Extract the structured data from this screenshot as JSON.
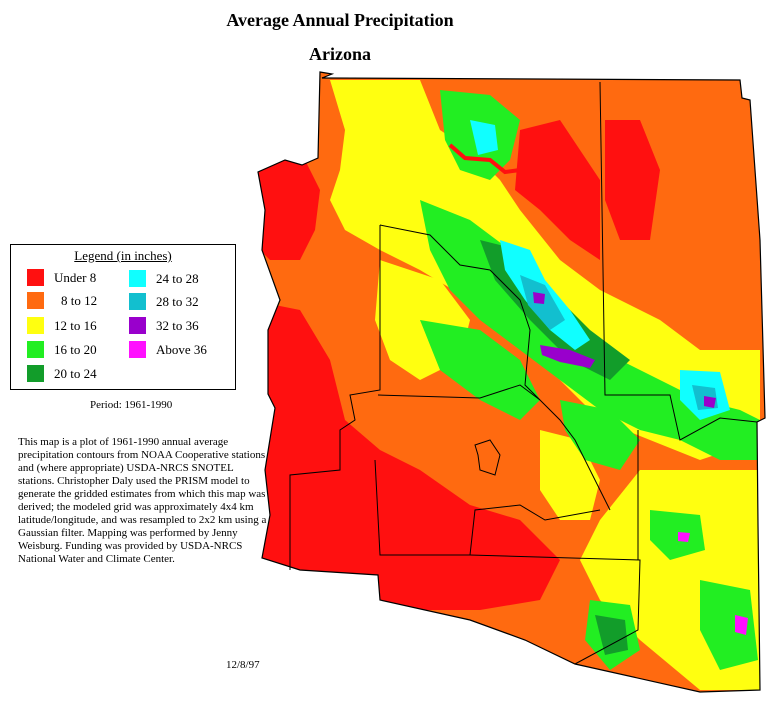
{
  "header": {
    "title": "Average Annual Precipitation",
    "subtitle": "Arizona"
  },
  "legend": {
    "title": "Legend (in inches)",
    "items": [
      {
        "label": "Under 8",
        "color": "#ff1010"
      },
      {
        "label": "8 to 12",
        "color": "#ff6a10"
      },
      {
        "label": "12 to 16",
        "color": "#ffff10"
      },
      {
        "label": "16 to 20",
        "color": "#22ee22"
      },
      {
        "label": "20 to 24",
        "color": "#129d2a"
      },
      {
        "label": "24 to 28",
        "color": "#10ffff"
      },
      {
        "label": "28 to 32",
        "color": "#12bfcf"
      },
      {
        "label": "32 to 36",
        "color": "#9900cc"
      },
      {
        "label": "Above 36",
        "color": "#ff10ff"
      }
    ]
  },
  "period": "Period: 1961-1990",
  "description": "This map is a plot of 1961-1990 annual average precipitation contours from NOAA Cooperative stations and (where appropriate) USDA-NRCS SNOTEL stations. Christopher Daly used the PRISM model to generate the gridded estimates from which this map was derived; the modeled grid was approximately 4x4 km latitude/longitude, and was resampled to 2x2 km using a Gaussian filter. Mapping was performed by Jenny Weisburg. Funding was provided by USDA-NRCS National Water and Climate Center.",
  "date": "12/8/97",
  "map": {
    "colors": {
      "under8": "#ff1010",
      "r8to12": "#ff6a10",
      "r12to16": "#ffff10",
      "r16to20": "#22ee22",
      "r20to24": "#129d2a",
      "r24to28": "#10ffff",
      "r28to32": "#12bfcf",
      "r32to36": "#9900cc",
      "above36": "#ff10ff",
      "county_line": "#000000"
    }
  }
}
